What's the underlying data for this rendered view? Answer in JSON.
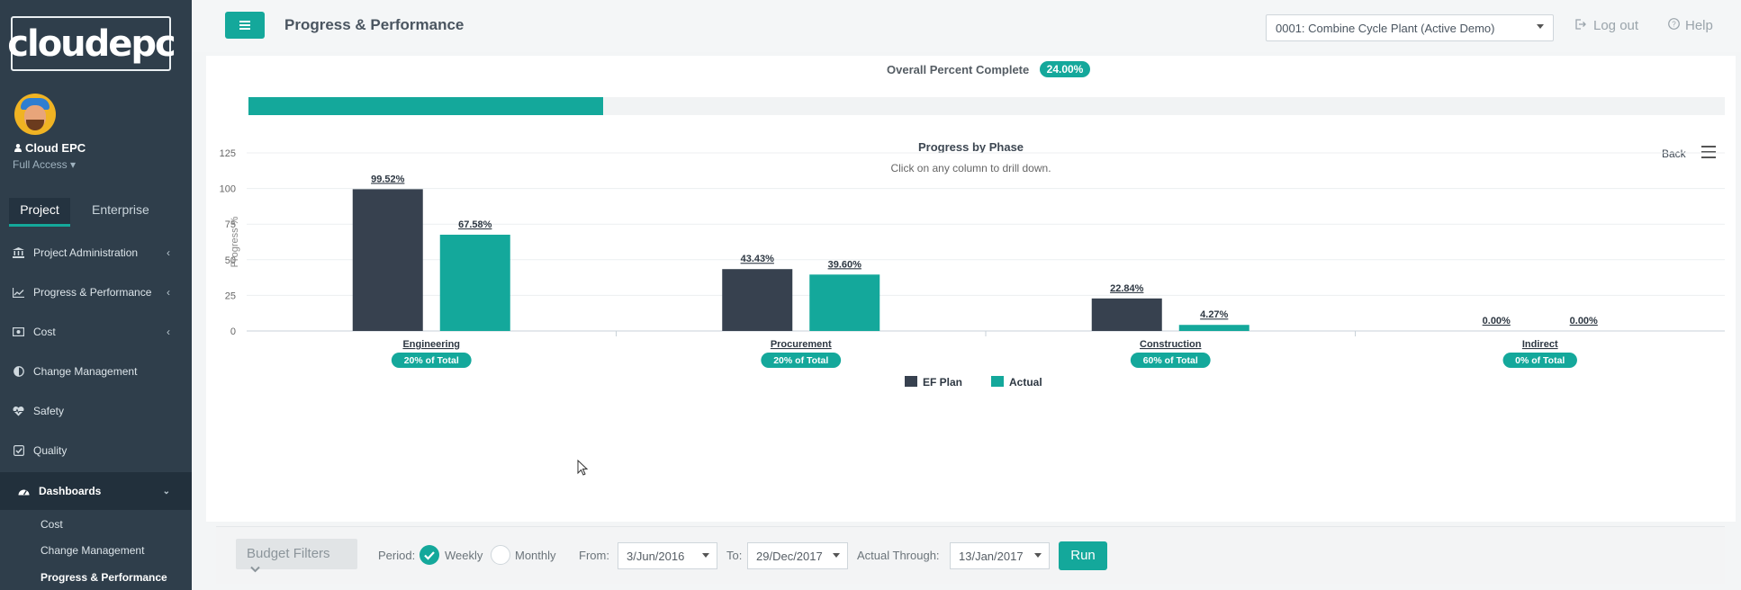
{
  "sidebar": {
    "logo_text": "cloudepc",
    "user_name": "Cloud EPC",
    "user_access": "Full Access ▾",
    "tabs": [
      "Project",
      "Enterprise"
    ],
    "items": [
      {
        "label": "Project Administration",
        "icon": "bank-icon",
        "has_chevron": true
      },
      {
        "label": "Progress & Performance",
        "icon": "line-chart-icon",
        "has_chevron": true
      },
      {
        "label": "Cost",
        "icon": "money-icon",
        "has_chevron": true
      },
      {
        "label": "Change Management",
        "icon": "half-circle-icon",
        "has_chevron": false
      },
      {
        "label": "Safety",
        "icon": "heartbeat-icon",
        "has_chevron": false
      },
      {
        "label": "Quality",
        "icon": "check-square-icon",
        "has_chevron": false
      },
      {
        "label": "Dashboards",
        "icon": "dashboard-icon",
        "has_chevron": true
      }
    ],
    "dashboard_sub": [
      "Cost",
      "Change Management",
      "Progress & Performance"
    ]
  },
  "header": {
    "title": "Progress & Performance",
    "project_selected": "0001: Combine Cycle Plant (Active Demo)",
    "logout_label": "Log out",
    "help_label": "Help"
  },
  "overall": {
    "label": "Overall Percent Complete",
    "badge": "24.00%",
    "value": 0.24
  },
  "chart_data": {
    "type": "bar",
    "title": "Progress by Phase",
    "subtitle": "Click on any column to drill down.",
    "ylabel": "Progress %",
    "ylim": [
      0,
      125
    ],
    "yticks": [
      0,
      25,
      50,
      75,
      100,
      125
    ],
    "categories": [
      "Engineering",
      "Procurement",
      "Construction",
      "Indirect"
    ],
    "category_badges": [
      "20% of Total",
      "20% of Total",
      "60% of Total",
      "0% of Total"
    ],
    "series": [
      {
        "name": "EF Plan",
        "color": "#37414f",
        "values": [
          99.52,
          43.43,
          22.84,
          0.0
        ],
        "labels": [
          "99.52%",
          "43.43%",
          "22.84%",
          "0.00%"
        ]
      },
      {
        "name": "Actual",
        "color": "#14a89b",
        "values": [
          67.58,
          39.6,
          4.27,
          0.0
        ],
        "labels": [
          "67.58%",
          "39.60%",
          "4.27%",
          "0.00%"
        ]
      }
    ],
    "legend_position": "bottom",
    "grid": true
  },
  "chart_controls": {
    "back_label": "Back"
  },
  "filters": {
    "budget_filters_label": "Budget Filters",
    "period_label": "Period:",
    "weekly_label": "Weekly",
    "monthly_label": "Monthly",
    "from_label": "From:",
    "from_value": "3/Jun/2016",
    "to_label": "To:",
    "to_value": "29/Dec/2017",
    "actual_through_label": "Actual Through:",
    "actual_through_value": "13/Jan/2017",
    "run_label": "Run"
  },
  "colors": {
    "accent": "#14a89b",
    "sidebar_bg": "#2f3e4b",
    "plan_bar": "#37414f"
  }
}
